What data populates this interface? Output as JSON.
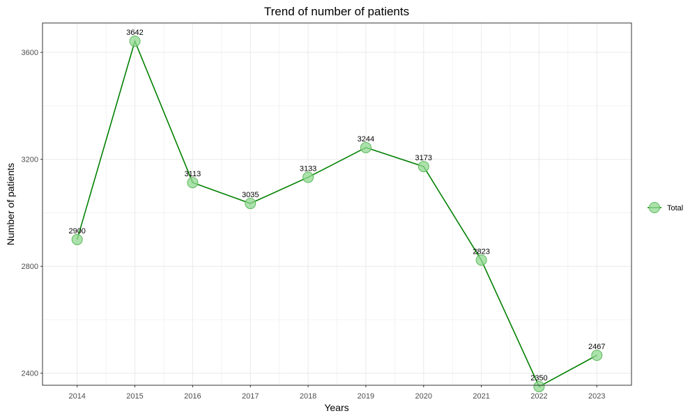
{
  "chart_data": {
    "type": "line",
    "title": "Trend of number of patients",
    "xlabel": "Years",
    "ylabel": "Number of patients",
    "x": [
      "2014",
      "2015",
      "2016",
      "2017",
      "2018",
      "2019",
      "2020",
      "2021",
      "2022",
      "2023"
    ],
    "series": [
      {
        "name": "Total",
        "values": [
          2900,
          3642,
          3113,
          3035,
          3133,
          3244,
          3173,
          2823,
          2350,
          2467
        ]
      }
    ],
    "ylim": [
      2355,
      3710
    ],
    "yticks": [
      2400,
      2800,
      3200,
      3600
    ],
    "grid": true,
    "legend_position": "right",
    "colors": {
      "line": "#008000",
      "point_fill": "#90d890",
      "point_stroke": "#5cb85c",
      "grid": "#ebebeb",
      "panel_border": "#333333"
    }
  }
}
